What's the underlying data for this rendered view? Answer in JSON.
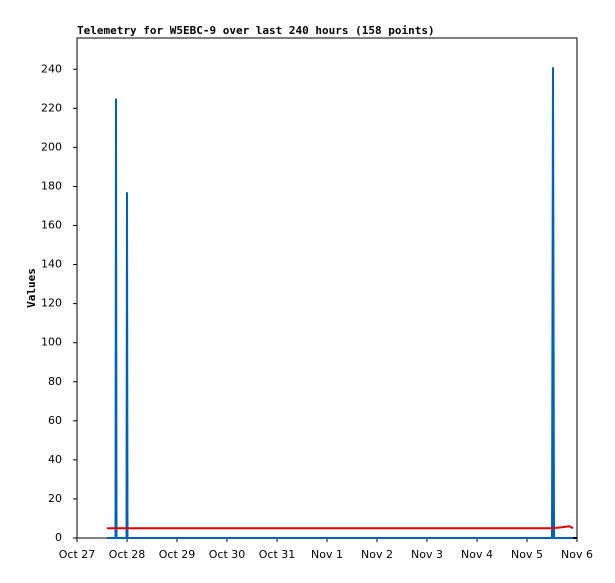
{
  "chart_data": {
    "type": "line",
    "title": "Telemetry for W5EBC-9 over last 240 hours (158 points)",
    "y_label": "Values",
    "xlim": [
      0,
      10
    ],
    "xticks": [
      {
        "value": 0,
        "label": "Oct 27"
      },
      {
        "value": 1,
        "label": "Oct 28"
      },
      {
        "value": 2,
        "label": "Oct 29"
      },
      {
        "value": 3,
        "label": "Oct 30"
      },
      {
        "value": 4,
        "label": "Oct 31"
      },
      {
        "value": 5,
        "label": "Nov 1"
      },
      {
        "value": 6,
        "label": "Nov 2"
      },
      {
        "value": 7,
        "label": "Nov 3"
      },
      {
        "value": 8,
        "label": "Nov 4"
      },
      {
        "value": 9,
        "label": "Nov 5"
      },
      {
        "value": 10,
        "label": "Nov 6"
      }
    ],
    "ylim": [
      0,
      256
    ],
    "yticks": [
      0,
      20,
      40,
      60,
      80,
      100,
      120,
      140,
      160,
      180,
      200,
      220,
      240
    ],
    "grid": false,
    "series": [
      {
        "color": "#000000",
        "x": [
          0.6,
          10
        ],
        "values": [
          0,
          0
        ]
      },
      {
        "color": "#0060c0",
        "x": [
          0.6,
          0.77,
          0.78,
          0.79,
          0.99,
          1.0,
          1.01,
          9.5,
          9.52,
          9.54,
          9.92
        ],
        "values": [
          0,
          0,
          225,
          0,
          0,
          177,
          0,
          0,
          241,
          0,
          0
        ]
      },
      {
        "color": "#e00000",
        "x": [
          0.6,
          0.75,
          0.8,
          9.5,
          9.7,
          9.85,
          9.92
        ],
        "values": [
          5,
          5,
          5,
          5,
          5.5,
          6,
          5
        ]
      }
    ]
  }
}
